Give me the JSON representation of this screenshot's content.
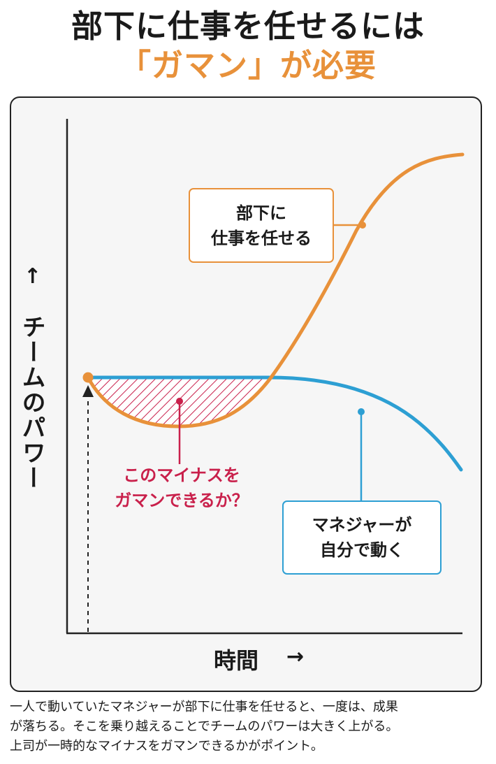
{
  "title": {
    "line1": "部下に仕事を任せるには",
    "line2": "「ガマン」が必要"
  },
  "chart": {
    "y_axis_label": "チームのパワー",
    "y_axis_arrow": "↑",
    "x_axis_label": "時間",
    "x_axis_arrow": "→",
    "delegate_callout": {
      "line1": "部下に",
      "line2": "仕事を任せる"
    },
    "manager_callout": {
      "line1": "マネジャーが",
      "line2": "自分で動く"
    },
    "minus_callout": {
      "line1": "このマイナスを",
      "line2": "ガマンできるか？"
    }
  },
  "colors": {
    "orange": "#e8913a",
    "blue": "#2d9fd3",
    "crimson": "#c9204b",
    "panel_bg": "#f6f6f6"
  },
  "caption": {
    "line1": "一人で動いていたマネジャーが部下に仕事を任せると、一度は、成果",
    "line2": "が落ちる。そこを乗り越えることでチームのパワーは大きく上がる。",
    "line3": "上司が一時的なマイナスをガマンできるかがポイント。"
  }
}
